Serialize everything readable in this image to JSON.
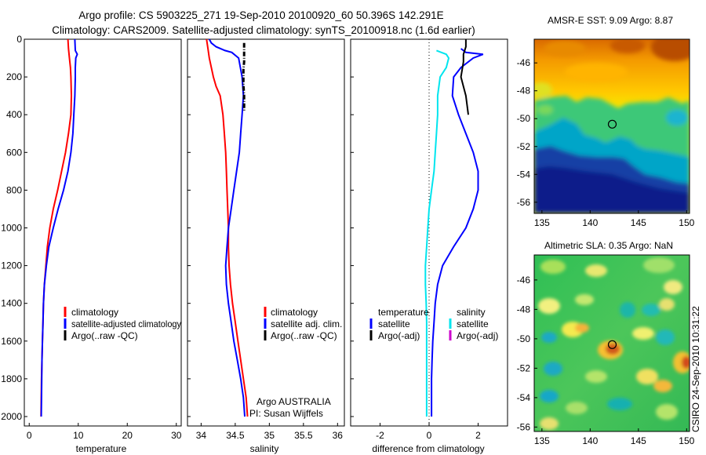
{
  "title_line1": "Argo profile: CS 5903225_271 19-Sep-2010 20100920_60 50.396S 142.291E",
  "title_line2": "Climatology: CARS2009. Satellite-adjusted climatology: synTS_20100918.nc (1.6d earlier)",
  "stamp": "CSIRO 24-Sep-2010 10:31:22",
  "annotation_line1": "Argo AUSTRALIA",
  "annotation_line2": "PI: Susan Wijffels",
  "colors": {
    "climatology": "#ff0000",
    "satellite": "#0000ff",
    "argo": "#000000",
    "temp_diff": "#00e5ee",
    "argo_adj_salinity": "#cc00cc"
  },
  "chart_data": [
    {
      "type": "line",
      "xlabel": "temperature",
      "ylabel": "",
      "xlim": [
        -1,
        31
      ],
      "ylim": [
        2050,
        0
      ],
      "xticks": [
        "0",
        "10",
        "20",
        "30"
      ],
      "yticks": [
        "0",
        "200",
        "400",
        "600",
        "800",
        "1000",
        "1200",
        "1400",
        "1600",
        "1800",
        "2000"
      ],
      "grid": false,
      "legend": "lower-right",
      "series": [
        {
          "name": "climatology",
          "color": "#ff0000",
          "points": [
            [
              7.9,
              0
            ],
            [
              8.0,
              50
            ],
            [
              8.2,
              100
            ],
            [
              8.4,
              150
            ],
            [
              8.5,
              200
            ],
            [
              8.6,
              300
            ],
            [
              8.5,
              400
            ],
            [
              8.0,
              500
            ],
            [
              7.4,
              600
            ],
            [
              6.6,
              700
            ],
            [
              5.8,
              800
            ],
            [
              4.9,
              900
            ],
            [
              4.2,
              1000
            ],
            [
              3.7,
              1100
            ],
            [
              3.4,
              1200
            ],
            [
              3.1,
              1300
            ],
            [
              2.9,
              1400
            ],
            [
              2.8,
              1500
            ],
            [
              2.7,
              1600
            ],
            [
              2.6,
              1700
            ],
            [
              2.5,
              1800
            ],
            [
              2.45,
              1900
            ],
            [
              2.4,
              2000
            ]
          ]
        },
        {
          "name": "satellite-adjusted climatology",
          "color": "#0000ff",
          "points": [
            [
              9.3,
              0
            ],
            [
              9.4,
              60
            ],
            [
              9.8,
              80
            ],
            [
              9.5,
              100
            ],
            [
              9.4,
              150
            ],
            [
              9.4,
              200
            ],
            [
              9.3,
              300
            ],
            [
              9.1,
              400
            ],
            [
              8.9,
              500
            ],
            [
              8.5,
              600
            ],
            [
              7.9,
              700
            ],
            [
              7.0,
              800
            ],
            [
              5.9,
              900
            ],
            [
              4.9,
              1000
            ],
            [
              4.0,
              1100
            ],
            [
              3.5,
              1200
            ],
            [
              3.1,
              1300
            ],
            [
              2.9,
              1400
            ],
            [
              2.8,
              1500
            ],
            [
              2.7,
              1600
            ],
            [
              2.6,
              1700
            ],
            [
              2.55,
              1800
            ],
            [
              2.5,
              1900
            ],
            [
              2.45,
              2000
            ]
          ]
        },
        {
          "name": "Argo(..raw -QC)",
          "color": "#000000",
          "points": []
        }
      ]
    },
    {
      "type": "line",
      "xlabel": "salinity",
      "ylabel": "",
      "xlim": [
        33.8,
        36.1
      ],
      "ylim": [
        2050,
        0
      ],
      "xticks": [
        "34",
        "34.5",
        "35",
        "35.5",
        "36"
      ],
      "yticks": [],
      "grid": false,
      "legend": "lower-right",
      "series": [
        {
          "name": "climatology",
          "color": "#ff0000",
          "points": [
            [
              34.08,
              0
            ],
            [
              34.1,
              50
            ],
            [
              34.12,
              100
            ],
            [
              34.15,
              150
            ],
            [
              34.18,
              200
            ],
            [
              34.22,
              250
            ],
            [
              34.28,
              300
            ],
            [
              34.32,
              400
            ],
            [
              34.34,
              500
            ],
            [
              34.36,
              600
            ],
            [
              34.37,
              700
            ],
            [
              34.38,
              800
            ],
            [
              34.39,
              900
            ],
            [
              34.4,
              1000
            ],
            [
              34.4,
              1100
            ],
            [
              34.41,
              1200
            ],
            [
              34.43,
              1300
            ],
            [
              34.46,
              1400
            ],
            [
              34.5,
              1500
            ],
            [
              34.54,
              1600
            ],
            [
              34.58,
              1700
            ],
            [
              34.62,
              1800
            ],
            [
              34.66,
              1900
            ],
            [
              34.68,
              2000
            ]
          ]
        },
        {
          "name": "satellite adj. clim.",
          "color": "#0000ff",
          "points": [
            [
              34.12,
              0
            ],
            [
              34.15,
              20
            ],
            [
              34.22,
              40
            ],
            [
              34.35,
              60
            ],
            [
              34.45,
              70
            ],
            [
              34.55,
              100
            ],
            [
              34.6,
              200
            ],
            [
              34.62,
              300
            ],
            [
              34.6,
              400
            ],
            [
              34.58,
              500
            ],
            [
              34.56,
              600
            ],
            [
              34.52,
              700
            ],
            [
              34.48,
              800
            ],
            [
              34.44,
              900
            ],
            [
              34.4,
              1000
            ],
            [
              34.38,
              1100
            ],
            [
              34.36,
              1200
            ],
            [
              34.37,
              1300
            ],
            [
              34.4,
              1400
            ],
            [
              34.44,
              1500
            ],
            [
              34.48,
              1600
            ],
            [
              34.53,
              1700
            ],
            [
              34.58,
              1800
            ],
            [
              34.62,
              1900
            ],
            [
              34.64,
              2000
            ]
          ]
        },
        {
          "name": "Argo(..raw -QC)",
          "color": "#000000",
          "points": [
            [
              34.63,
              20
            ],
            [
              34.63,
              120
            ],
            [
              34.62,
              160
            ],
            [
              34.62,
              240
            ],
            [
              34.63,
              300
            ],
            [
              34.63,
              380
            ]
          ]
        }
      ]
    },
    {
      "type": "line",
      "xlabel": "difference from climatology",
      "ylabel": "",
      "xlim": [
        -3.2,
        3.2
      ],
      "ylim": [
        2050,
        0
      ],
      "xticks": [
        "-2",
        "0",
        "2"
      ],
      "yticks": [],
      "grid": false,
      "legend": "lower-center",
      "legend_titles": [
        "temperature",
        "salinity"
      ],
      "series": [
        {
          "name": "satellite",
          "group": "temperature",
          "color": "#0000ff",
          "points": [
            [
              1.3,
              50
            ],
            [
              1.5,
              70
            ],
            [
              2.2,
              80
            ],
            [
              1.8,
              100
            ],
            [
              1.3,
              150
            ],
            [
              1.0,
              200
            ],
            [
              0.95,
              300
            ],
            [
              1.2,
              400
            ],
            [
              1.5,
              500
            ],
            [
              1.8,
              600
            ],
            [
              2.0,
              700
            ],
            [
              2.0,
              800
            ],
            [
              1.8,
              900
            ],
            [
              1.5,
              1000
            ],
            [
              1.0,
              1100
            ],
            [
              0.55,
              1200
            ],
            [
              0.35,
              1300
            ],
            [
              0.25,
              1400
            ],
            [
              0.2,
              1500
            ],
            [
              0.15,
              1600
            ],
            [
              0.12,
              1700
            ],
            [
              0.1,
              1800
            ],
            [
              0.1,
              1900
            ],
            [
              0.1,
              2000
            ]
          ]
        },
        {
          "name": "Argo(-adj)",
          "group": "temperature",
          "color": "#000000",
          "points": [
            [
              1.5,
              0
            ],
            [
              1.5,
              40
            ],
            [
              1.4,
              80
            ],
            [
              1.4,
              120
            ],
            [
              1.3,
              200
            ],
            [
              1.5,
              300
            ],
            [
              1.6,
              400
            ]
          ]
        },
        {
          "name": "satellite",
          "group": "salinity",
          "color": "#00e5ee",
          "points": [
            [
              0.3,
              60
            ],
            [
              0.5,
              70
            ],
            [
              0.7,
              80
            ],
            [
              0.8,
              100
            ],
            [
              0.7,
              150
            ],
            [
              0.45,
              200
            ],
            [
              0.35,
              300
            ],
            [
              0.35,
              400
            ],
            [
              0.3,
              500
            ],
            [
              0.25,
              600
            ],
            [
              0.2,
              700
            ],
            [
              0.1,
              800
            ],
            [
              0.0,
              900
            ],
            [
              -0.05,
              1000
            ],
            [
              -0.1,
              1100
            ],
            [
              -0.15,
              1200
            ],
            [
              -0.15,
              1300
            ],
            [
              -0.12,
              1400
            ],
            [
              -0.1,
              1500
            ],
            [
              -0.1,
              1600
            ],
            [
              -0.1,
              1700
            ],
            [
              -0.1,
              1800
            ],
            [
              -0.1,
              1900
            ],
            [
              -0.1,
              2000
            ]
          ]
        },
        {
          "name": "Argo(-adj)",
          "group": "salinity",
          "color": "#cc00cc",
          "points": []
        }
      ]
    },
    {
      "type": "heatmap",
      "title": "AMSR-E SST: 9.09  Argo: 8.87",
      "xlim": [
        134.2,
        150.3
      ],
      "ylim": [
        -56.8,
        -44.3
      ],
      "xticks": [
        "135",
        "140",
        "145",
        "150"
      ],
      "yticks": [
        "-46",
        "-48",
        "-50",
        "-52",
        "-54",
        "-56"
      ],
      "marker": {
        "lon": 142.291,
        "lat": -50.396
      }
    },
    {
      "type": "heatmap",
      "title": "Altimetric SLA: 0.35  Argo: NaN",
      "xlim": [
        134.2,
        150.3
      ],
      "ylim": [
        -56.3,
        -44.3
      ],
      "xticks": [
        "135",
        "140",
        "145",
        "150"
      ],
      "yticks": [
        "-46",
        "-48",
        "-50",
        "-52",
        "-54",
        "-56"
      ],
      "marker": {
        "lon": 142.291,
        "lat": -50.396
      }
    }
  ]
}
